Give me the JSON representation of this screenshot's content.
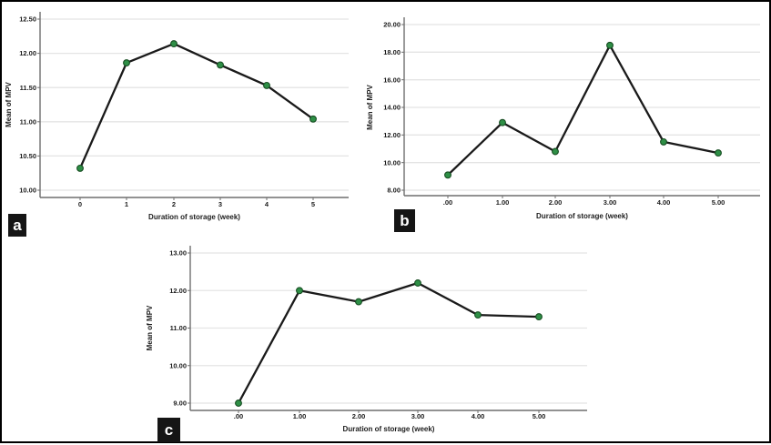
{
  "panels": {
    "a": {
      "tag": "a"
    },
    "b": {
      "tag": "b"
    },
    "c": {
      "tag": "c"
    }
  },
  "colors": {
    "line": "#1a1a1a",
    "marker_fill": "#2e8f46",
    "marker_stroke": "#174d22",
    "grid": "#e4e4e4",
    "axis": "#6e6e6e",
    "text": "#1c1c1c",
    "panel_tag_bg": "#151515",
    "panel_tag_text": "#ffffff"
  },
  "chart_data": [
    {
      "type": "line",
      "panel": "a",
      "title": "",
      "xlabel": "Duration of storage (week)",
      "ylabel": "Mean of MPV",
      "x_ticklabels": [
        "0",
        "1",
        "2",
        "3",
        "4",
        "5"
      ],
      "x": [
        0,
        1,
        2,
        3,
        4,
        5
      ],
      "values": [
        10.32,
        11.86,
        12.14,
        11.83,
        11.53,
        11.04
      ],
      "yticks": [
        12.5,
        12.0,
        11.5,
        11.0,
        10.5,
        10.0
      ],
      "y_ticklabels": [
        "12.50",
        "12.00",
        "11.50",
        "11.00",
        "10.50",
        "10.00"
      ],
      "ylim": [
        10.0,
        12.5
      ],
      "grid": true,
      "legend": "none",
      "marker": "circle"
    },
    {
      "type": "line",
      "panel": "b",
      "title": "",
      "xlabel": "Duration of storage (week)",
      "ylabel": "Mean of MPV",
      "x_ticklabels": [
        ".00",
        "1.00",
        "2.00",
        "3.00",
        "4.00",
        "5.00"
      ],
      "x": [
        0,
        1,
        2,
        3,
        4,
        5
      ],
      "values": [
        9.1,
        12.9,
        10.8,
        18.5,
        11.5,
        10.7
      ],
      "yticks": [
        20.0,
        18.0,
        16.0,
        14.0,
        12.0,
        10.0,
        8.0
      ],
      "y_ticklabels": [
        "20.00",
        "18.00",
        "16.00",
        "14.00",
        "12.00",
        "10.00",
        "8.00"
      ],
      "ylim": [
        8.0,
        20.0
      ],
      "grid": true,
      "legend": "none",
      "marker": "circle"
    },
    {
      "type": "line",
      "panel": "c",
      "title": "",
      "xlabel": "Duration of storage (week)",
      "ylabel": "Mean of MPV",
      "x_ticklabels": [
        ".00",
        "1.00",
        "2.00",
        "3.00",
        "4.00",
        "5.00"
      ],
      "x": [
        0,
        1,
        2,
        3,
        4,
        5
      ],
      "values": [
        9.0,
        12.0,
        11.7,
        12.2,
        11.35,
        11.3
      ],
      "yticks": [
        13.0,
        12.0,
        11.0,
        10.0,
        9.0
      ],
      "y_ticklabels": [
        "13.00",
        "12.00",
        "11.00",
        "10.00",
        "9.00"
      ],
      "ylim": [
        9.0,
        13.0
      ],
      "grid": true,
      "legend": "none",
      "marker": "circle"
    }
  ]
}
